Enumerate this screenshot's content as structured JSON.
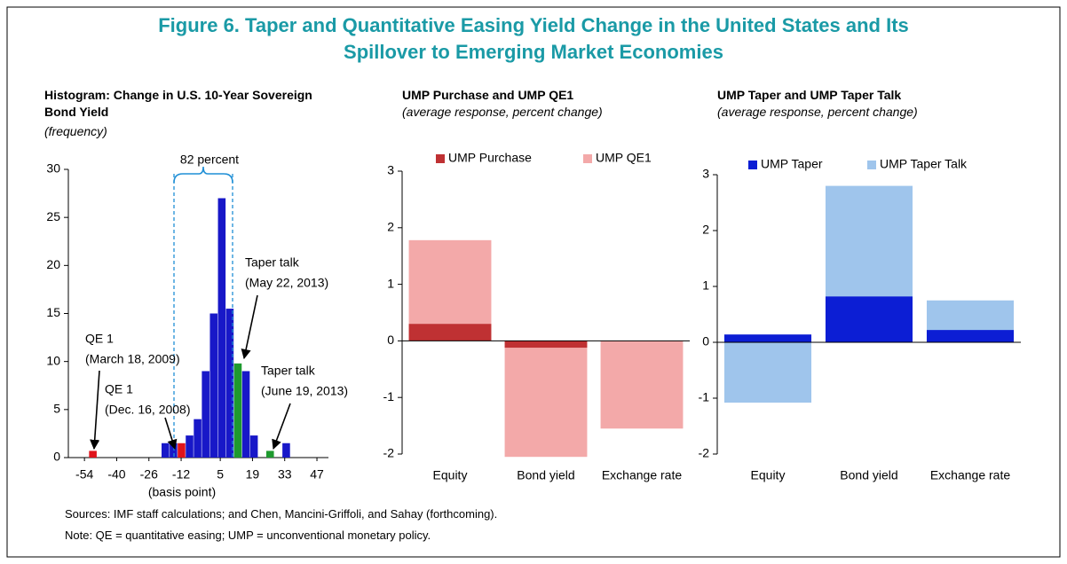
{
  "title": [
    "Figure 6. Taper and Quantitative Easing Yield Change in the United States and Its",
    "Spillover to Emerging Market Economies"
  ],
  "chart_data": [
    {
      "type": "histogram",
      "title": "Histogram: Change in U.S. 10-Year Sovereign Bond Yield",
      "ylabel": "(frequency)",
      "xlabel": "(basis point)",
      "bins": [
        -52,
        -48.5,
        -45,
        -41.5,
        -38,
        -34.5,
        -31,
        -27.5,
        -24,
        -20.5,
        -17,
        -13.5,
        -10,
        -6.5,
        -3,
        0.5,
        4,
        7.5,
        11,
        14.5,
        18,
        21.5,
        25,
        28.5,
        32,
        35.5
      ],
      "counts": [
        0.7,
        0,
        0,
        0,
        0,
        0,
        0,
        0,
        0,
        1.5,
        1.5,
        1.5,
        2.3,
        4,
        9,
        15,
        27,
        15.5,
        9.8,
        9,
        2.3,
        0,
        0.7,
        0,
        1.5
      ],
      "colors": [
        "#e0141b",
        "#1818c8",
        "#1818c8",
        "#1818c8",
        "#1818c8",
        "#1818c8",
        "#1818c8",
        "#1818c8",
        "#1818c8",
        "#1818c8",
        "#1818c8",
        "#e0141b",
        "#1818c8",
        "#1818c8",
        "#1818c8",
        "#1818c8",
        "#1818c8",
        "#1818c8",
        "#1e9a2e",
        "#1818c8",
        "#1818c8",
        "#1818c8",
        "#1e9a2e",
        "#1818c8",
        "#1818c8"
      ],
      "xlim": [
        -61,
        52
      ],
      "xticks": [
        -54,
        -40,
        -26,
        -12,
        5,
        19,
        33,
        47
      ],
      "ylim": [
        0,
        30
      ],
      "yticks": [
        0,
        5,
        10,
        15,
        20,
        25,
        30
      ],
      "annotations": [
        [
          "82 percent"
        ],
        [
          "QE 1",
          "(March 18, 2009)"
        ],
        [
          "QE 1",
          "(Dec. 16, 2008)"
        ],
        [
          "Taper talk",
          "(May 22, 2013)"
        ],
        [
          "Taper talk",
          "(June 19, 2013)"
        ]
      ]
    },
    {
      "type": "bar",
      "title": "UMP Purchase and UMP QE1",
      "subtitle": "(average response, percent change)",
      "categories": [
        "Equity",
        "Bond yield",
        "Exchange rate"
      ],
      "series": [
        {
          "name": "UMP Purchase",
          "color": "#bf3133",
          "values": [
            0.3,
            -0.12,
            0
          ]
        },
        {
          "name": "UMP QE1",
          "color": "#f3a9a9",
          "values": [
            1.78,
            -2.05,
            -1.55
          ]
        }
      ],
      "ylim": [
        -2,
        3
      ],
      "yticks": [
        -2,
        -1,
        0,
        1,
        2,
        3
      ]
    },
    {
      "type": "bar",
      "title": "UMP Taper and UMP Taper Talk",
      "subtitle": "(average response, percent change)",
      "categories": [
        "Equity",
        "Bond yield",
        "Exchange rate"
      ],
      "series": [
        {
          "name": "UMP Taper",
          "color": "#0c1ed4",
          "values": [
            0.14,
            0.82,
            0.22
          ]
        },
        {
          "name": "UMP Taper Talk",
          "color": "#9fc5ec",
          "values": [
            -1.08,
            2.8,
            0.75
          ]
        }
      ],
      "ylim": [
        -2,
        3
      ],
      "yticks": [
        -2,
        -1,
        0,
        1,
        2,
        3
      ]
    }
  ],
  "sources": "Sources: IMF staff calculations; and Chen, Mancini-Griffoli, and Sahay (forthcoming).",
  "note": "Note: QE = quantitative easing; UMP = unconventional monetary policy."
}
